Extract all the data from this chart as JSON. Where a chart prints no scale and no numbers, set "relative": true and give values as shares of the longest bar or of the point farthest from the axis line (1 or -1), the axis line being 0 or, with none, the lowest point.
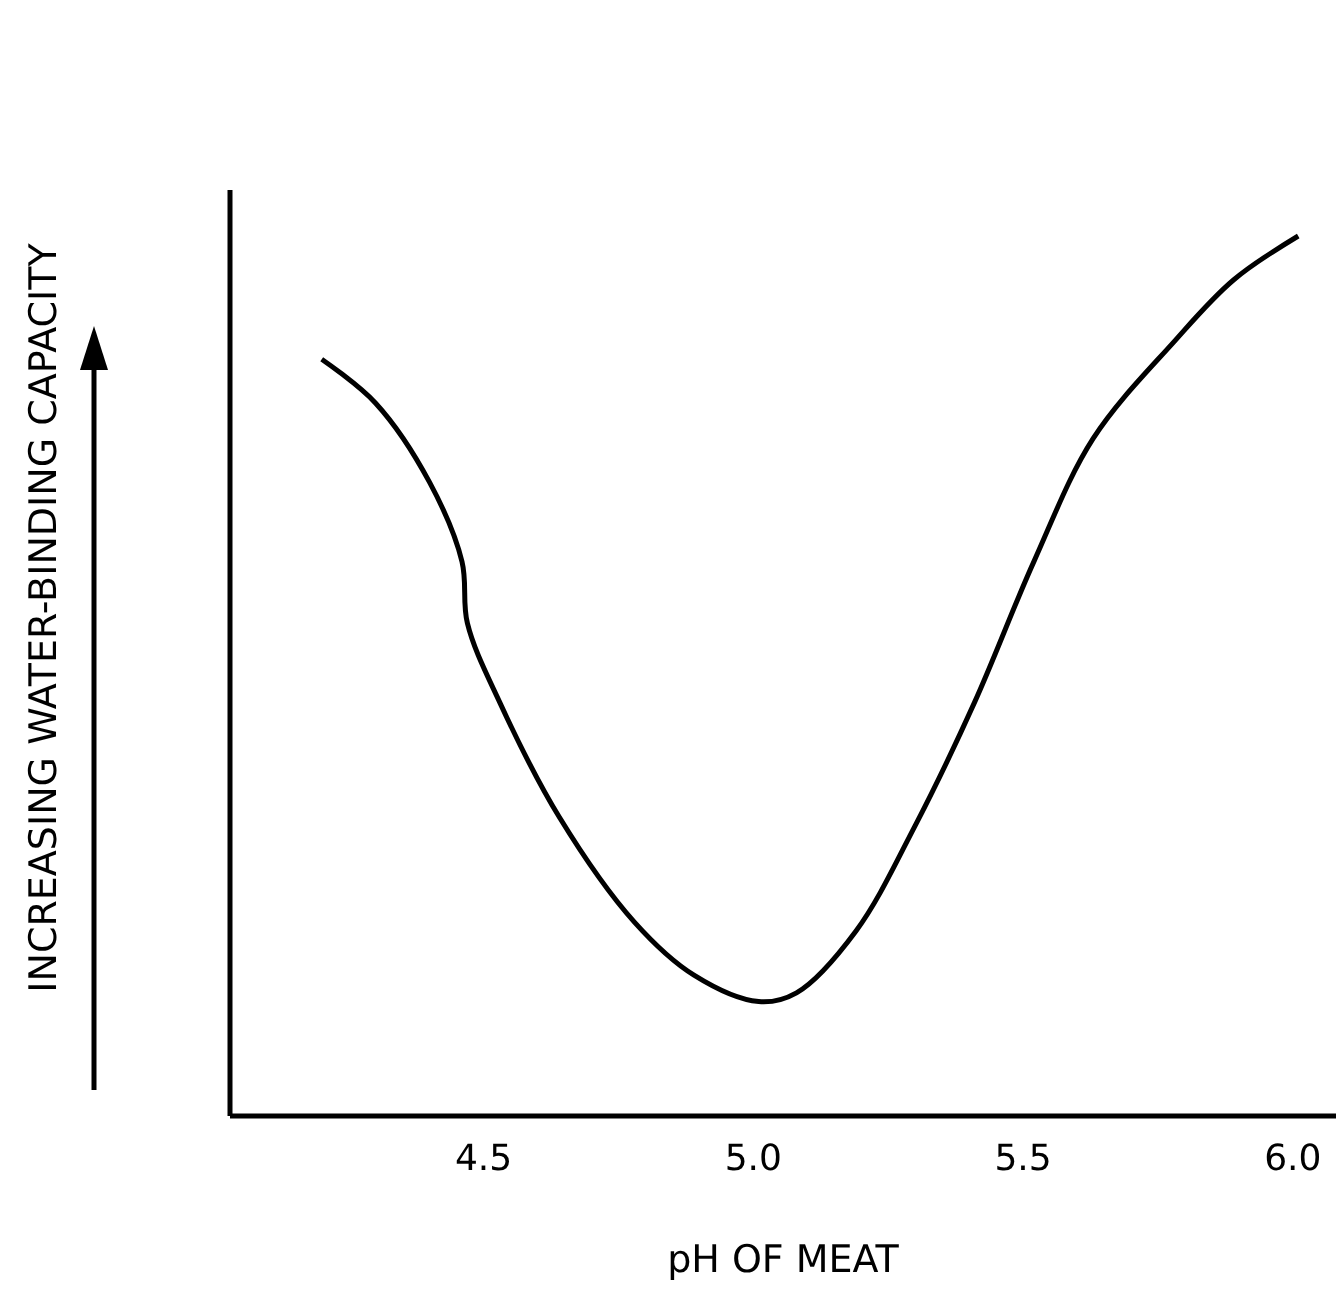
{
  "chart_data": {
    "type": "line",
    "relative": true,
    "xlabel": "pH OF MEAT",
    "ylabel": "INCREASING WATER-BINDING CAPACITY",
    "xlim": [
      4.03,
      6.08
    ],
    "xticks": [
      4.5,
      {
        "value": 5,
        "label": "5.0"
      },
      5.5,
      {
        "value": 6,
        "label": "6.0"
      }
    ],
    "tick_labels": "x",
    "grid": false,
    "marker": "none",
    "line_style": "solid",
    "series": [
      {
        "color": "#000000",
        "x": [
          4.2,
          4.3,
          4.4,
          4.46,
          4.47,
          4.53,
          4.64,
          4.78,
          4.89,
          5.01,
          5.08,
          5.19,
          5.3,
          5.41,
          5.52,
          5.63,
          5.78,
          5.89,
          6.01
        ],
        "values": [
          0.86,
          0.81,
          0.72,
          0.63,
          0.56,
          0.47,
          0.34,
          0.22,
          0.16,
          0.13,
          0.14,
          0.21,
          0.33,
          0.47,
          0.63,
          0.77,
          0.88,
          0.95,
          1.0
        ]
      }
    ]
  }
}
